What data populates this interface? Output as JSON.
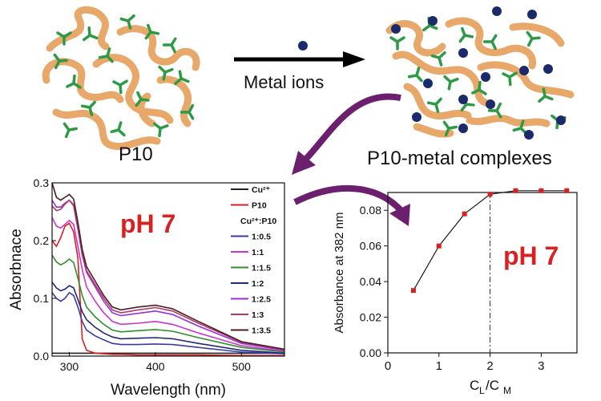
{
  "scheme": {
    "left_label": "P10",
    "right_label": "P10-metal complexes",
    "arrow_label": "Metal ions",
    "polymer_color": "#e8a86a",
    "ligand_color": "#2e9a46",
    "ion_color": "#1b2a6b",
    "curved_arrow_color": "#6b1f6e"
  },
  "chart_data": [
    {
      "type": "line",
      "annotation": "pH 7",
      "annotation_color": "#d62222",
      "xlabel": "Wavelength (nm)",
      "ylabel": "Absorbnace",
      "xlim": [
        280,
        550
      ],
      "ylim": [
        0,
        0.3
      ],
      "x_ticks": [
        300,
        400,
        500
      ],
      "y_ticks": [
        0.0,
        0.1,
        0.2,
        0.3
      ],
      "x_tick_labels": [
        "300",
        "400",
        "500"
      ],
      "y_tick_labels": [
        "0.0",
        "0.1",
        "0.2",
        "0.3"
      ],
      "legend_position": "top-right",
      "legend_subtitle": "Cu²⁺:P10",
      "series": [
        {
          "name": "Cu²⁺",
          "color": "#222222",
          "x": [
            280,
            285,
            290,
            295,
            300,
            305,
            310,
            315,
            320,
            330,
            340,
            350,
            360,
            380,
            400,
            420,
            450,
            500,
            550
          ],
          "y": [
            0.005,
            0.005,
            0.005,
            0.005,
            0.005,
            0.005,
            0.005,
            0.005,
            0.005,
            0.005,
            0.005,
            0.005,
            0.005,
            0.005,
            0.005,
            0.005,
            0.005,
            0.005,
            0.005
          ]
        },
        {
          "name": "P10",
          "color": "#d62222",
          "x": [
            280,
            285,
            290,
            295,
            300,
            305,
            310,
            315,
            320,
            330,
            340,
            350,
            360,
            380,
            400,
            420,
            450,
            500,
            550
          ],
          "y": [
            0.2,
            0.19,
            0.205,
            0.225,
            0.23,
            0.215,
            0.17,
            0.03,
            0.01,
            0.005,
            0.004,
            0.003,
            0.003,
            0.002,
            0.002,
            0.002,
            0.002,
            0.001,
            0.001
          ]
        },
        {
          "name": "1:0.5",
          "color": "#3a3aa8",
          "x": [
            280,
            285,
            290,
            295,
            300,
            305,
            310,
            315,
            320,
            330,
            340,
            350,
            360,
            380,
            400,
            420,
            450,
            500,
            550
          ],
          "y": [
            0.11,
            0.1,
            0.095,
            0.1,
            0.11,
            0.105,
            0.085,
            0.06,
            0.045,
            0.035,
            0.028,
            0.022,
            0.02,
            0.02,
            0.021,
            0.02,
            0.015,
            0.007,
            0.004
          ]
        },
        {
          "name": "1:1",
          "color": "#cc33cc",
          "x": [
            280,
            285,
            290,
            295,
            300,
            305,
            310,
            315,
            320,
            330,
            340,
            350,
            360,
            380,
            400,
            420,
            450,
            500,
            550
          ],
          "y": [
            0.24,
            0.225,
            0.222,
            0.228,
            0.235,
            0.228,
            0.19,
            0.15,
            0.12,
            0.095,
            0.075,
            0.06,
            0.055,
            0.057,
            0.06,
            0.055,
            0.04,
            0.018,
            0.008
          ]
        },
        {
          "name": "1:1.5",
          "color": "#2f8f2f",
          "x": [
            280,
            285,
            290,
            295,
            300,
            305,
            310,
            315,
            320,
            330,
            340,
            350,
            360,
            380,
            400,
            420,
            450,
            500,
            550
          ],
          "y": [
            0.175,
            0.163,
            0.158,
            0.162,
            0.168,
            0.162,
            0.135,
            0.105,
            0.085,
            0.068,
            0.055,
            0.045,
            0.042,
            0.044,
            0.046,
            0.043,
            0.032,
            0.015,
            0.007
          ]
        },
        {
          "name": "1:2",
          "color": "#1e2a78",
          "x": [
            280,
            285,
            290,
            295,
            300,
            305,
            310,
            315,
            320,
            330,
            340,
            350,
            360,
            380,
            400,
            420,
            450,
            500,
            550
          ],
          "y": [
            0.128,
            0.118,
            0.113,
            0.116,
            0.122,
            0.118,
            0.098,
            0.077,
            0.063,
            0.05,
            0.04,
            0.033,
            0.03,
            0.031,
            0.032,
            0.03,
            0.022,
            0.01,
            0.005
          ]
        },
        {
          "name": "1:2.5",
          "color": "#9b30d9",
          "x": [
            280,
            285,
            290,
            295,
            300,
            305,
            310,
            315,
            320,
            330,
            340,
            350,
            360,
            380,
            400,
            420,
            450,
            500,
            550
          ],
          "y": [
            0.27,
            0.258,
            0.258,
            0.265,
            0.27,
            0.26,
            0.22,
            0.175,
            0.145,
            0.12,
            0.095,
            0.075,
            0.07,
            0.074,
            0.078,
            0.072,
            0.052,
            0.022,
            0.01
          ]
        },
        {
          "name": "1:3",
          "color": "#b03a6e",
          "x": [
            280,
            285,
            290,
            295,
            300,
            305,
            310,
            315,
            320,
            330,
            340,
            350,
            360,
            380,
            400,
            420,
            450,
            500,
            550
          ],
          "y": [
            0.26,
            0.252,
            0.254,
            0.263,
            0.27,
            0.262,
            0.222,
            0.178,
            0.148,
            0.124,
            0.1,
            0.08,
            0.075,
            0.08,
            0.084,
            0.078,
            0.057,
            0.024,
            0.011
          ]
        },
        {
          "name": "1:3.5",
          "color": "#4a1e1e",
          "x": [
            280,
            285,
            290,
            295,
            300,
            305,
            310,
            315,
            320,
            330,
            340,
            350,
            360,
            380,
            400,
            420,
            450,
            500,
            550
          ],
          "y": [
            0.3,
            0.275,
            0.27,
            0.275,
            0.28,
            0.272,
            0.232,
            0.185,
            0.155,
            0.13,
            0.105,
            0.085,
            0.08,
            0.085,
            0.088,
            0.082,
            0.06,
            0.025,
            0.012
          ]
        }
      ]
    },
    {
      "type": "line",
      "annotation": "pH 7",
      "annotation_color": "#d62222",
      "xlabel_main": "C",
      "xlabel_sub1": "L",
      "xlabel_sep": "/C",
      "xlabel_sub2": "M",
      "ylabel": "Absorbance at 382 nm",
      "xlim": [
        0,
        3.7
      ],
      "ylim": [
        0,
        0.09
      ],
      "x_ticks": [
        0,
        1,
        2,
        3
      ],
      "y_ticks": [
        0.0,
        0.02,
        0.04,
        0.06,
        0.08
      ],
      "x_tick_labels": [
        "0",
        "1",
        "2",
        "3"
      ],
      "y_tick_labels": [
        "0.00",
        "0.02",
        "0.04",
        "0.06",
        "0.08"
      ],
      "vline_x": 2,
      "series": [
        {
          "color": "#d62222",
          "x": [
            0.5,
            1.0,
            1.5,
            2.0,
            2.5,
            3.0,
            3.5
          ],
          "y": [
            0.035,
            0.06,
            0.078,
            0.089,
            0.091,
            0.091,
            0.091
          ]
        }
      ]
    }
  ]
}
